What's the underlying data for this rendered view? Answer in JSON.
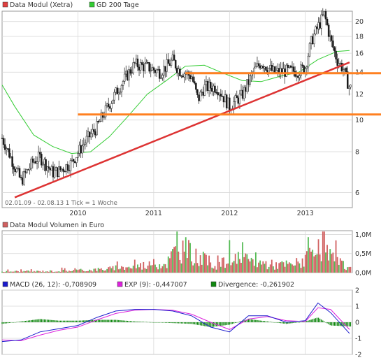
{
  "legend": {
    "price_label": "Data Modul (Xetra)",
    "ma_label": "GD 200 Tage",
    "price_color": "#e04040",
    "ma_color": "#33cc33",
    "volume_label": "Data Modul Volumen in Euro",
    "volume_color": "#d06060",
    "macd_label": "MACD (26, 12): -0,708909",
    "exp_label": "EXP (9): -0,447007",
    "div_label": "Divergence: -0,261902",
    "macd_color": "#1a1acc",
    "exp_color": "#dd22dd",
    "div_color": "#118811"
  },
  "info_text": "02.01.09 - 02.08.13   1 Tick = 1 Woche",
  "chart_data": [
    {
      "type": "line",
      "title": "Data Modul (Xetra)",
      "x_tick_labels": [
        "2010",
        "2011",
        "2012",
        "2013"
      ],
      "y_tick_labels": [
        "6",
        "8",
        "10",
        "12",
        "14",
        "16",
        "18",
        "20"
      ],
      "ylim": [
        5.4,
        21.5
      ],
      "y_scale": "log",
      "grid": true,
      "series": [
        {
          "name": "Data Modul (Xetra)",
          "style": "ohlc-weekly",
          "x": [
            "2009-01",
            "2009-03",
            "2009-04",
            "2009-06",
            "2009-07",
            "2009-09",
            "2009-10",
            "2009-12",
            "2010-02",
            "2010-04",
            "2010-06",
            "2010-08",
            "2010-10",
            "2010-12",
            "2011-02",
            "2011-04",
            "2011-05",
            "2011-07",
            "2011-08",
            "2011-09",
            "2011-11",
            "2012-01",
            "2012-03",
            "2012-05",
            "2012-06",
            "2012-08",
            "2012-10",
            "2012-12",
            "2013-01",
            "2013-02",
            "2013-04",
            "2013-05",
            "2013-06",
            "2013-07",
            "2013-08"
          ],
          "values": [
            8.8,
            7.2,
            6.5,
            7.5,
            7.7,
            6.9,
            7.0,
            7.4,
            8.5,
            9.5,
            11.2,
            13.0,
            14.8,
            14.5,
            14.0,
            15.2,
            14.2,
            13.6,
            11.5,
            12.6,
            12.6,
            11.0,
            11.9,
            14.2,
            15.0,
            14.0,
            14.1,
            14.1,
            14.5,
            17.5,
            21.0,
            17.5,
            15.3,
            14.3,
            12.5
          ]
        },
        {
          "name": "GD 200 Tage",
          "x": [
            "2009-01",
            "2009-03",
            "2009-06",
            "2009-09",
            "2009-12",
            "2010-03",
            "2010-06",
            "2010-09",
            "2010-12",
            "2011-03",
            "2011-06",
            "2011-09",
            "2011-12",
            "2012-03",
            "2012-06",
            "2012-09",
            "2012-12",
            "2013-03",
            "2013-06",
            "2013-08"
          ],
          "values": [
            12.8,
            11.0,
            9.0,
            8.3,
            7.9,
            8.0,
            8.9,
            10.3,
            12.0,
            13.2,
            14.6,
            14.7,
            13.9,
            13.2,
            13.1,
            13.6,
            14.0,
            15.3,
            16.2,
            16.3
          ]
        }
      ],
      "annotations": [
        {
          "type": "trendline",
          "color": "#dd3333",
          "from": {
            "x": "2009-03",
            "y": 5.8
          },
          "to": {
            "x": "2013-08",
            "y": 15.0
          }
        },
        {
          "type": "horizontal",
          "color": "#ff8020",
          "y": 13.9,
          "from": "2011-06"
        },
        {
          "type": "horizontal",
          "color": "#ff8020",
          "y": 10.4,
          "from": "2010-01"
        }
      ]
    },
    {
      "type": "bar",
      "title": "Data Modul Volumen in Euro",
      "y_tick_labels": [
        "0,0M",
        "0,5M",
        "1,0M"
      ],
      "ylim": [
        0,
        1.1
      ],
      "unit": "M Euro",
      "series": [
        {
          "name": "Volumen",
          "x": [
            "2009-01",
            "2009-03",
            "2009-06",
            "2009-09",
            "2009-12",
            "2010-03",
            "2010-06",
            "2010-09",
            "2010-12",
            "2011-03",
            "2011-05",
            "2011-08",
            "2011-11",
            "2012-02",
            "2012-05",
            "2012-08",
            "2012-11",
            "2013-02",
            "2013-04",
            "2013-06",
            "2013-08"
          ],
          "values": [
            0.04,
            0.05,
            0.05,
            0.06,
            0.08,
            0.1,
            0.15,
            0.2,
            0.3,
            0.35,
            1.0,
            0.55,
            0.3,
            0.5,
            0.4,
            0.3,
            0.3,
            0.6,
            0.9,
            0.4,
            0.15
          ]
        }
      ]
    },
    {
      "type": "line",
      "title": "MACD",
      "y_tick_labels": [
        "-2",
        "-1",
        "0",
        "1",
        "2"
      ],
      "ylim": [
        -2,
        2
      ],
      "series": [
        {
          "name": "MACD (26, 12)",
          "x": [
            "2009-01",
            "2009-04",
            "2009-07",
            "2009-10",
            "2010-01",
            "2010-04",
            "2010-07",
            "2010-10",
            "2011-01",
            "2011-04",
            "2011-07",
            "2011-10",
            "2012-01",
            "2012-04",
            "2012-07",
            "2012-10",
            "2013-01",
            "2013-03",
            "2013-05",
            "2013-08"
          ],
          "values": [
            -1.2,
            -1.1,
            -0.6,
            -0.4,
            -0.2,
            0.3,
            0.7,
            0.8,
            0.8,
            0.7,
            0.4,
            -0.3,
            -0.6,
            0.4,
            0.4,
            0.0,
            0.1,
            1.2,
            0.6,
            -0.7
          ]
        },
        {
          "name": "EXP (9)",
          "x": [
            "2009-01",
            "2009-04",
            "2009-07",
            "2009-10",
            "2010-01",
            "2010-04",
            "2010-07",
            "2010-10",
            "2011-01",
            "2011-04",
            "2011-07",
            "2011-10",
            "2012-01",
            "2012-04",
            "2012-07",
            "2012-10",
            "2013-01",
            "2013-03",
            "2013-05",
            "2013-08"
          ],
          "values": [
            -1.1,
            -1.15,
            -0.8,
            -0.5,
            -0.3,
            0.15,
            0.55,
            0.75,
            0.8,
            0.75,
            0.5,
            0.0,
            -0.45,
            0.2,
            0.35,
            0.1,
            0.05,
            0.9,
            0.8,
            -0.45
          ]
        },
        {
          "name": "Divergence",
          "x": [
            "2009-01",
            "2009-04",
            "2009-07",
            "2009-10",
            "2010-01",
            "2010-04",
            "2010-07",
            "2010-10",
            "2011-01",
            "2011-04",
            "2011-07",
            "2011-10",
            "2012-01",
            "2012-04",
            "2012-07",
            "2012-10",
            "2013-01",
            "2013-03",
            "2013-05",
            "2013-08"
          ],
          "values": [
            -0.1,
            0.05,
            0.2,
            0.1,
            0.1,
            0.15,
            0.15,
            0.05,
            0.0,
            -0.05,
            -0.1,
            -0.3,
            -0.15,
            0.2,
            0.05,
            -0.1,
            0.05,
            0.3,
            -0.2,
            -0.26
          ]
        }
      ]
    }
  ]
}
